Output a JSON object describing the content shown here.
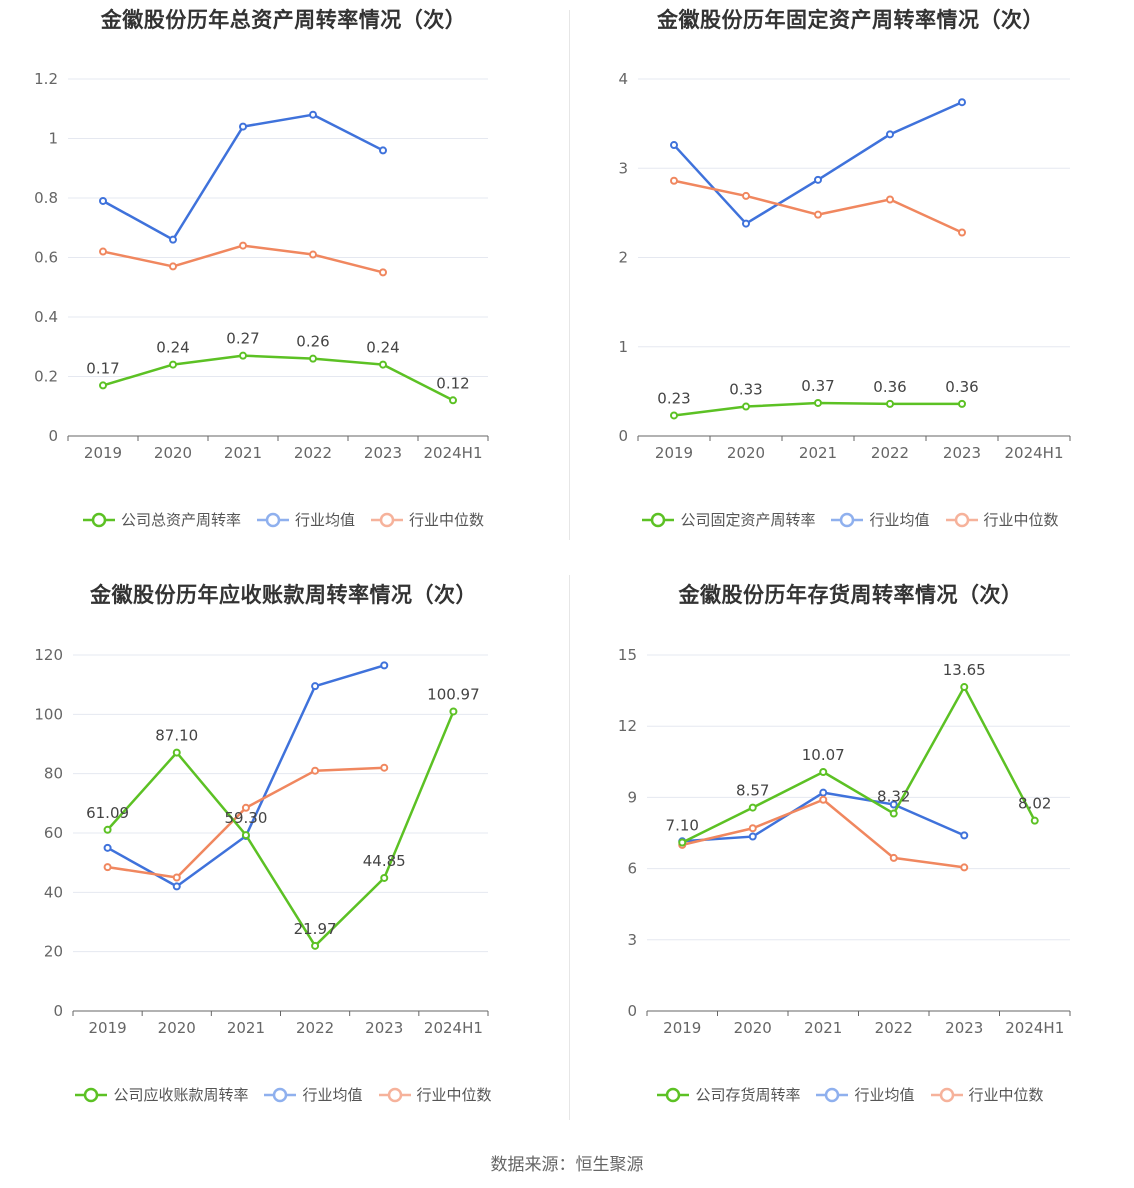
{
  "source": "数据来源：恒生聚源",
  "colors": {
    "company": "#5cc124",
    "avg": "#3f72db",
    "median": "#f0875f",
    "legend_avg": "#8fb0ee",
    "legend_median": "#f6b29b",
    "grid": "#e5e8f0",
    "axis": "#666666",
    "tick": "#666666"
  },
  "chart_data": [
    {
      "type": "line",
      "title": "金徽股份历年总资产周转率情况（次）",
      "categories": [
        "2019",
        "2020",
        "2021",
        "2022",
        "2023",
        "2024H1"
      ],
      "ylim": [
        0,
        1.2
      ],
      "yticks": [
        0,
        0.2,
        0.4,
        0.6,
        0.8,
        1,
        1.2
      ],
      "ytick_labels": [
        "0",
        "0.2",
        "0.4",
        "0.6",
        "0.8",
        "1",
        "1.2"
      ],
      "grid": true,
      "legend": "bottom",
      "series": [
        {
          "name": "公司总资产周转率",
          "key": "company",
          "values": [
            0.17,
            0.24,
            0.27,
            0.26,
            0.24,
            0.12
          ],
          "labels": [
            "0.17",
            "0.24",
            "0.27",
            "0.26",
            "0.24",
            "0.12"
          ]
        },
        {
          "name": "行业均值",
          "key": "avg",
          "values": [
            0.79,
            0.66,
            1.04,
            1.08,
            0.96,
            null
          ]
        },
        {
          "name": "行业中位数",
          "key": "median",
          "values": [
            0.62,
            0.57,
            0.64,
            0.61,
            0.55,
            null
          ]
        }
      ]
    },
    {
      "type": "line",
      "title": "金徽股份历年固定资产周转率情况（次）",
      "categories": [
        "2019",
        "2020",
        "2021",
        "2022",
        "2023",
        "2024H1"
      ],
      "ylim": [
        0,
        4
      ],
      "yticks": [
        0,
        1,
        2,
        3,
        4
      ],
      "ytick_labels": [
        "0",
        "1",
        "2",
        "3",
        "4"
      ],
      "grid": true,
      "legend": "bottom",
      "series": [
        {
          "name": "公司固定资产周转率",
          "key": "company",
          "values": [
            0.23,
            0.33,
            0.37,
            0.36,
            0.36,
            null
          ],
          "labels": [
            "0.23",
            "0.33",
            "0.37",
            "0.36",
            "0.36",
            null
          ]
        },
        {
          "name": "行业均值",
          "key": "avg",
          "values": [
            3.26,
            2.38,
            2.87,
            3.38,
            3.74,
            null
          ]
        },
        {
          "name": "行业中位数",
          "key": "median",
          "values": [
            2.86,
            2.69,
            2.48,
            2.65,
            2.28,
            null
          ]
        }
      ]
    },
    {
      "type": "line",
      "title": "金徽股份历年应收账款周转率情况（次）",
      "categories": [
        "2019",
        "2020",
        "2021",
        "2022",
        "2023",
        "2024H1"
      ],
      "ylim": [
        0,
        120
      ],
      "yticks": [
        0,
        20,
        40,
        60,
        80,
        100,
        120
      ],
      "ytick_labels": [
        "0",
        "20",
        "40",
        "60",
        "80",
        "100",
        "120"
      ],
      "grid": true,
      "legend": "bottom",
      "series": [
        {
          "name": "公司应收账款周转率",
          "key": "company",
          "values": [
            61.09,
            87.1,
            59.3,
            21.97,
            44.85,
            100.97
          ],
          "labels": [
            "61.09",
            "87.10",
            "59.30",
            "21.97",
            "44.85",
            "100.97"
          ]
        },
        {
          "name": "行业均值",
          "key": "avg",
          "values": [
            55.0,
            42.0,
            59.0,
            109.5,
            116.5,
            null
          ]
        },
        {
          "name": "行业中位数",
          "key": "median",
          "values": [
            48.5,
            45.0,
            68.5,
            81.0,
            82.0,
            null
          ]
        }
      ]
    },
    {
      "type": "line",
      "title": "金徽股份历年存货周转率情况（次）",
      "categories": [
        "2019",
        "2020",
        "2021",
        "2022",
        "2023",
        "2024H1"
      ],
      "ylim": [
        0,
        15
      ],
      "yticks": [
        0,
        3,
        6,
        9,
        12,
        15
      ],
      "ytick_labels": [
        "0",
        "3",
        "6",
        "9",
        "12",
        "15"
      ],
      "grid": true,
      "legend": "bottom",
      "series": [
        {
          "name": "公司存货周转率",
          "key": "company",
          "values": [
            7.1,
            8.57,
            10.07,
            8.32,
            13.65,
            8.02
          ],
          "labels": [
            "7.10",
            "8.57",
            "10.07",
            "8.32",
            "13.65",
            "8.02"
          ]
        },
        {
          "name": "行业均值",
          "key": "avg",
          "values": [
            7.15,
            7.35,
            9.2,
            8.7,
            7.4,
            null
          ]
        },
        {
          "name": "行业中位数",
          "key": "median",
          "values": [
            7.0,
            7.7,
            8.9,
            6.45,
            6.05,
            null
          ]
        }
      ]
    }
  ]
}
